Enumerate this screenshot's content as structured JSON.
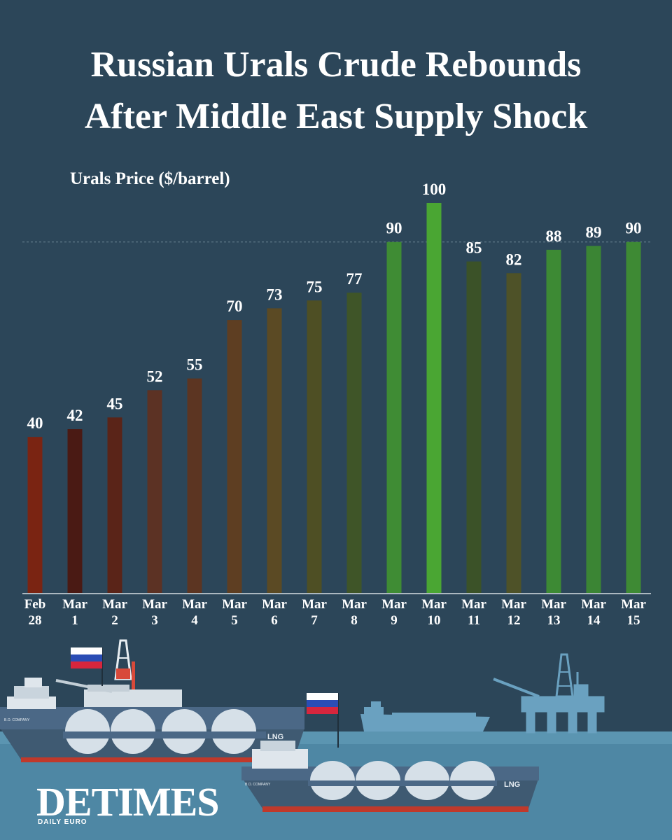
{
  "header": {
    "title_line1": "Russian Urals Crude Rebounds",
    "title_line2": "After Middle East Supply Shock"
  },
  "chart_data": {
    "type": "bar",
    "ylabel": "Urals Price ($/barrel)",
    "ylim": [
      0,
      100
    ],
    "categories": [
      [
        "Feb",
        "28"
      ],
      [
        "Mar",
        "1"
      ],
      [
        "Mar",
        "2"
      ],
      [
        "Mar",
        "3"
      ],
      [
        "Mar",
        "4"
      ],
      [
        "Mar",
        "5"
      ],
      [
        "Mar",
        "6"
      ],
      [
        "Mar",
        "7"
      ],
      [
        "Mar",
        "8"
      ],
      [
        "Mar",
        "9"
      ],
      [
        "Mar",
        "10"
      ],
      [
        "Mar",
        "11"
      ],
      [
        "Mar",
        "12"
      ],
      [
        "Mar",
        "13"
      ],
      [
        "Mar",
        "14"
      ],
      [
        "Mar",
        "15"
      ]
    ],
    "values": [
      40,
      42,
      45,
      52,
      55,
      70,
      73,
      75,
      77,
      90,
      100,
      85,
      82,
      88,
      89,
      90
    ],
    "bar_colors": [
      "#7a2412",
      "#4a1a14",
      "#5a2418",
      "#5c3224",
      "#5c3522",
      "#5e3e22",
      "#5b4a24",
      "#4e4f24",
      "#3f5528",
      "#3f8c34",
      "#4aa633",
      "#3b5228",
      "#4e5228",
      "#3d8a34",
      "#3b8534",
      "#3e8a34"
    ],
    "reference_line": 90,
    "grid": false
  },
  "scene": {
    "ship1_label": "LNG",
    "ship2_label": "LNG",
    "hull_small_text": "B.O. COMPANY"
  },
  "logo": {
    "name": "DETIMES",
    "tagline": "DAILY EURO"
  }
}
